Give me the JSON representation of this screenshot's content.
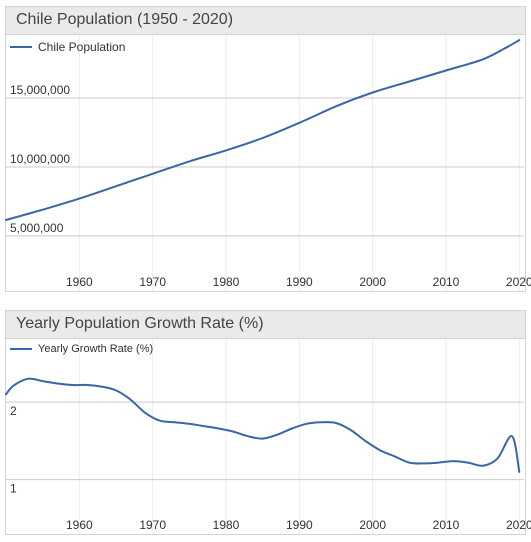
{
  "colors": {
    "series": "#3a66a8",
    "header_bg": "#eaeaea",
    "grid": "#cccccc"
  },
  "chart_data": [
    {
      "type": "line",
      "title": "Chile Population (1950 - 2020)",
      "legend": "top-left",
      "grid": true,
      "xlim": [
        1950,
        2020.5
      ],
      "ylim": [
        1000000,
        19500000
      ],
      "xticks": [
        "1960",
        "1970",
        "1980",
        "1990",
        "2000",
        "2010",
        "2020"
      ],
      "yticks": [
        "5,000,000",
        "10,000,000",
        "15,000,000"
      ],
      "series": [
        {
          "name": "Chile Population",
          "x": [
            1950,
            1955,
            1960,
            1965,
            1970,
            1975,
            1980,
            1985,
            1990,
            1995,
            2000,
            2005,
            2010,
            2015,
            2018,
            2020
          ],
          "y": [
            6150000,
            6900000,
            7700000,
            8600000,
            9500000,
            10400000,
            11200000,
            12100000,
            13200000,
            14400000,
            15400000,
            16200000,
            17000000,
            17800000,
            18600000,
            19200000
          ]
        }
      ]
    },
    {
      "type": "line",
      "title": "Yearly Population Growth Rate (%)",
      "legend": "top-left",
      "grid": true,
      "xlim": [
        1950,
        2020.5
      ],
      "ylim": [
        0.3,
        2.8
      ],
      "xticks": [
        "1960",
        "1970",
        "1980",
        "1990",
        "2000",
        "2010",
        "2020"
      ],
      "yticks": [
        "1",
        "2"
      ],
      "series": [
        {
          "name": "Yearly Growth Rate (%)",
          "x": [
            1950,
            1951,
            1953,
            1955,
            1957,
            1959,
            1961,
            1963,
            1965,
            1967,
            1969,
            1971,
            1973,
            1975,
            1977,
            1979,
            1981,
            1983,
            1985,
            1987,
            1989,
            1991,
            1993,
            1995,
            1997,
            1999,
            2001,
            2003,
            2005,
            2007,
            2009,
            2011,
            2013,
            2015,
            2017,
            2019,
            2020
          ],
          "y": [
            2.1,
            2.21,
            2.3,
            2.27,
            2.24,
            2.22,
            2.22,
            2.2,
            2.15,
            2.03,
            1.86,
            1.76,
            1.74,
            1.72,
            1.69,
            1.66,
            1.62,
            1.56,
            1.53,
            1.58,
            1.66,
            1.72,
            1.74,
            1.73,
            1.64,
            1.5,
            1.38,
            1.3,
            1.22,
            1.21,
            1.22,
            1.24,
            1.22,
            1.18,
            1.27,
            1.56,
            1.1
          ]
        }
      ]
    }
  ]
}
